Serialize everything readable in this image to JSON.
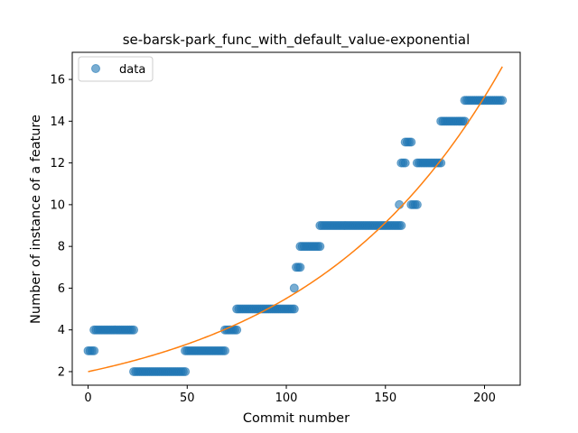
{
  "chart_data": {
    "type": "scatter",
    "title": "se-barsk-park_func_with_default_value-exponential",
    "xlabel": "Commit number",
    "ylabel": "Number of instance of a feature",
    "xlim": [
      -8,
      218
    ],
    "ylim": [
      1.35,
      17.3
    ],
    "xticks": [
      0,
      50,
      100,
      150,
      200
    ],
    "yticks": [
      2,
      4,
      6,
      8,
      10,
      12,
      14,
      16
    ],
    "legend": {
      "position": "top-left",
      "entries": [
        "data"
      ]
    },
    "colors": {
      "points": "#1f77b4",
      "fit": "#ff7f0e"
    },
    "series": [
      {
        "name": "data",
        "kind": "points",
        "steps": [
          {
            "x_from": 0,
            "x_to": 3,
            "y": 3
          },
          {
            "x_from": 3,
            "x_to": 23,
            "y": 4
          },
          {
            "x_from": 23,
            "x_to": 49,
            "y": 2
          },
          {
            "x_from": 49,
            "x_to": 69,
            "y": 3
          },
          {
            "x_from": 69,
            "x_to": 75,
            "y": 4
          },
          {
            "x_from": 75,
            "x_to": 104,
            "y": 5
          },
          {
            "x_from": 104,
            "x_to": 104,
            "y": 6
          },
          {
            "x_from": 105,
            "x_to": 107,
            "y": 7
          },
          {
            "x_from": 107,
            "x_to": 117,
            "y": 8
          },
          {
            "x_from": 117,
            "x_to": 158,
            "y": 9
          },
          {
            "x_from": 157,
            "x_to": 157,
            "y": 10
          },
          {
            "x_from": 158,
            "x_to": 160,
            "y": 12
          },
          {
            "x_from": 160,
            "x_to": 163,
            "y": 13
          },
          {
            "x_from": 163,
            "x_to": 166,
            "y": 10
          },
          {
            "x_from": 166,
            "x_to": 178,
            "y": 12
          },
          {
            "x_from": 178,
            "x_to": 190,
            "y": 14
          },
          {
            "x_from": 190,
            "x_to": 209,
            "y": 15
          }
        ]
      },
      {
        "name": "exponential fit",
        "kind": "line",
        "function": {
          "a": 2.0,
          "b": 0.01013
        },
        "x_range": [
          0,
          209
        ]
      }
    ]
  }
}
